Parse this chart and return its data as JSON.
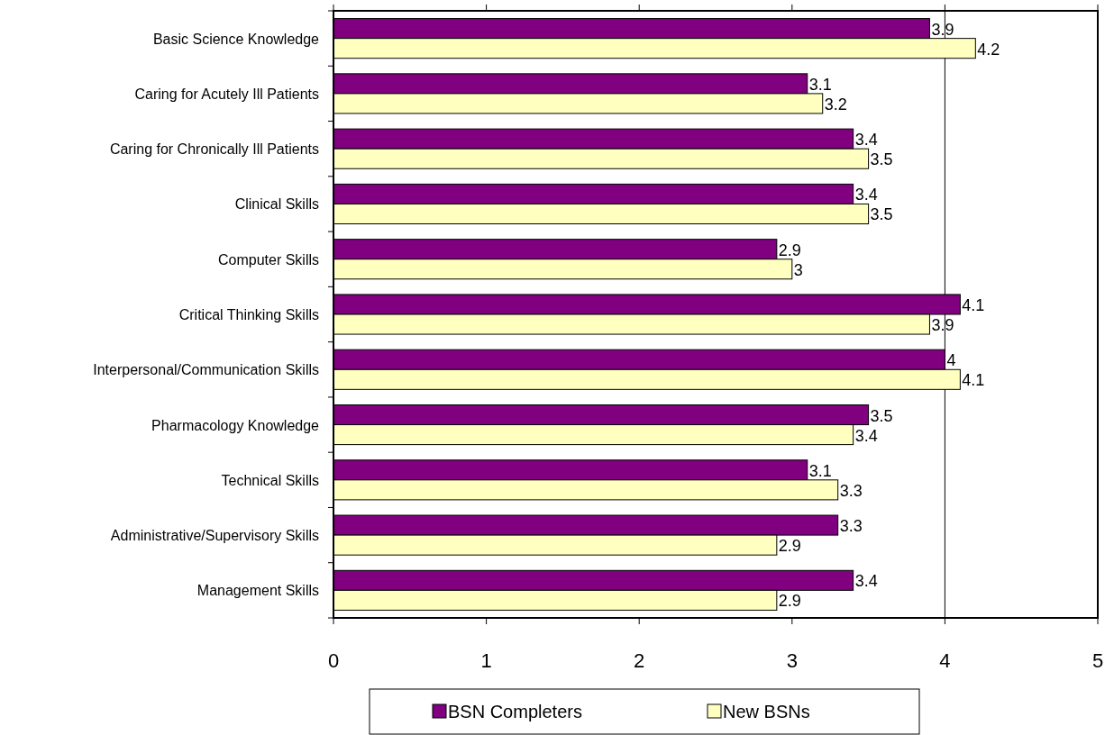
{
  "chart_data": {
    "type": "bar",
    "orientation": "horizontal",
    "categories": [
      "Basic Science Knowledge",
      "Caring for Acutely Ill Patients",
      "Caring for Chronically Ill Patients",
      "Clinical Skills",
      "Computer Skills",
      "Critical Thinking Skills",
      "Interpersonal/Communication Skills",
      "Pharmacology Knowledge",
      "Technical Skills",
      "Administrative/Supervisory Skills",
      "Management Skills"
    ],
    "series": [
      {
        "name": "BSN Completers",
        "color": "#800080",
        "values": [
          3.9,
          3.1,
          3.4,
          3.4,
          2.9,
          4.1,
          4,
          3.5,
          3.1,
          3.3,
          3.4
        ]
      },
      {
        "name": "New BSNs",
        "color": "#ffffc0",
        "values": [
          4.2,
          3.2,
          3.5,
          3.5,
          3,
          3.9,
          4.1,
          3.4,
          3.3,
          2.9,
          2.9
        ]
      }
    ],
    "xlim": [
      0,
      5
    ],
    "xticks": [
      0,
      1,
      2,
      3,
      4,
      5
    ],
    "data_labels": true,
    "legend": "bottom",
    "grid": false,
    "ref_lines": [
      {
        "axis": "x",
        "value": 4,
        "color": "#000000"
      }
    ]
  }
}
